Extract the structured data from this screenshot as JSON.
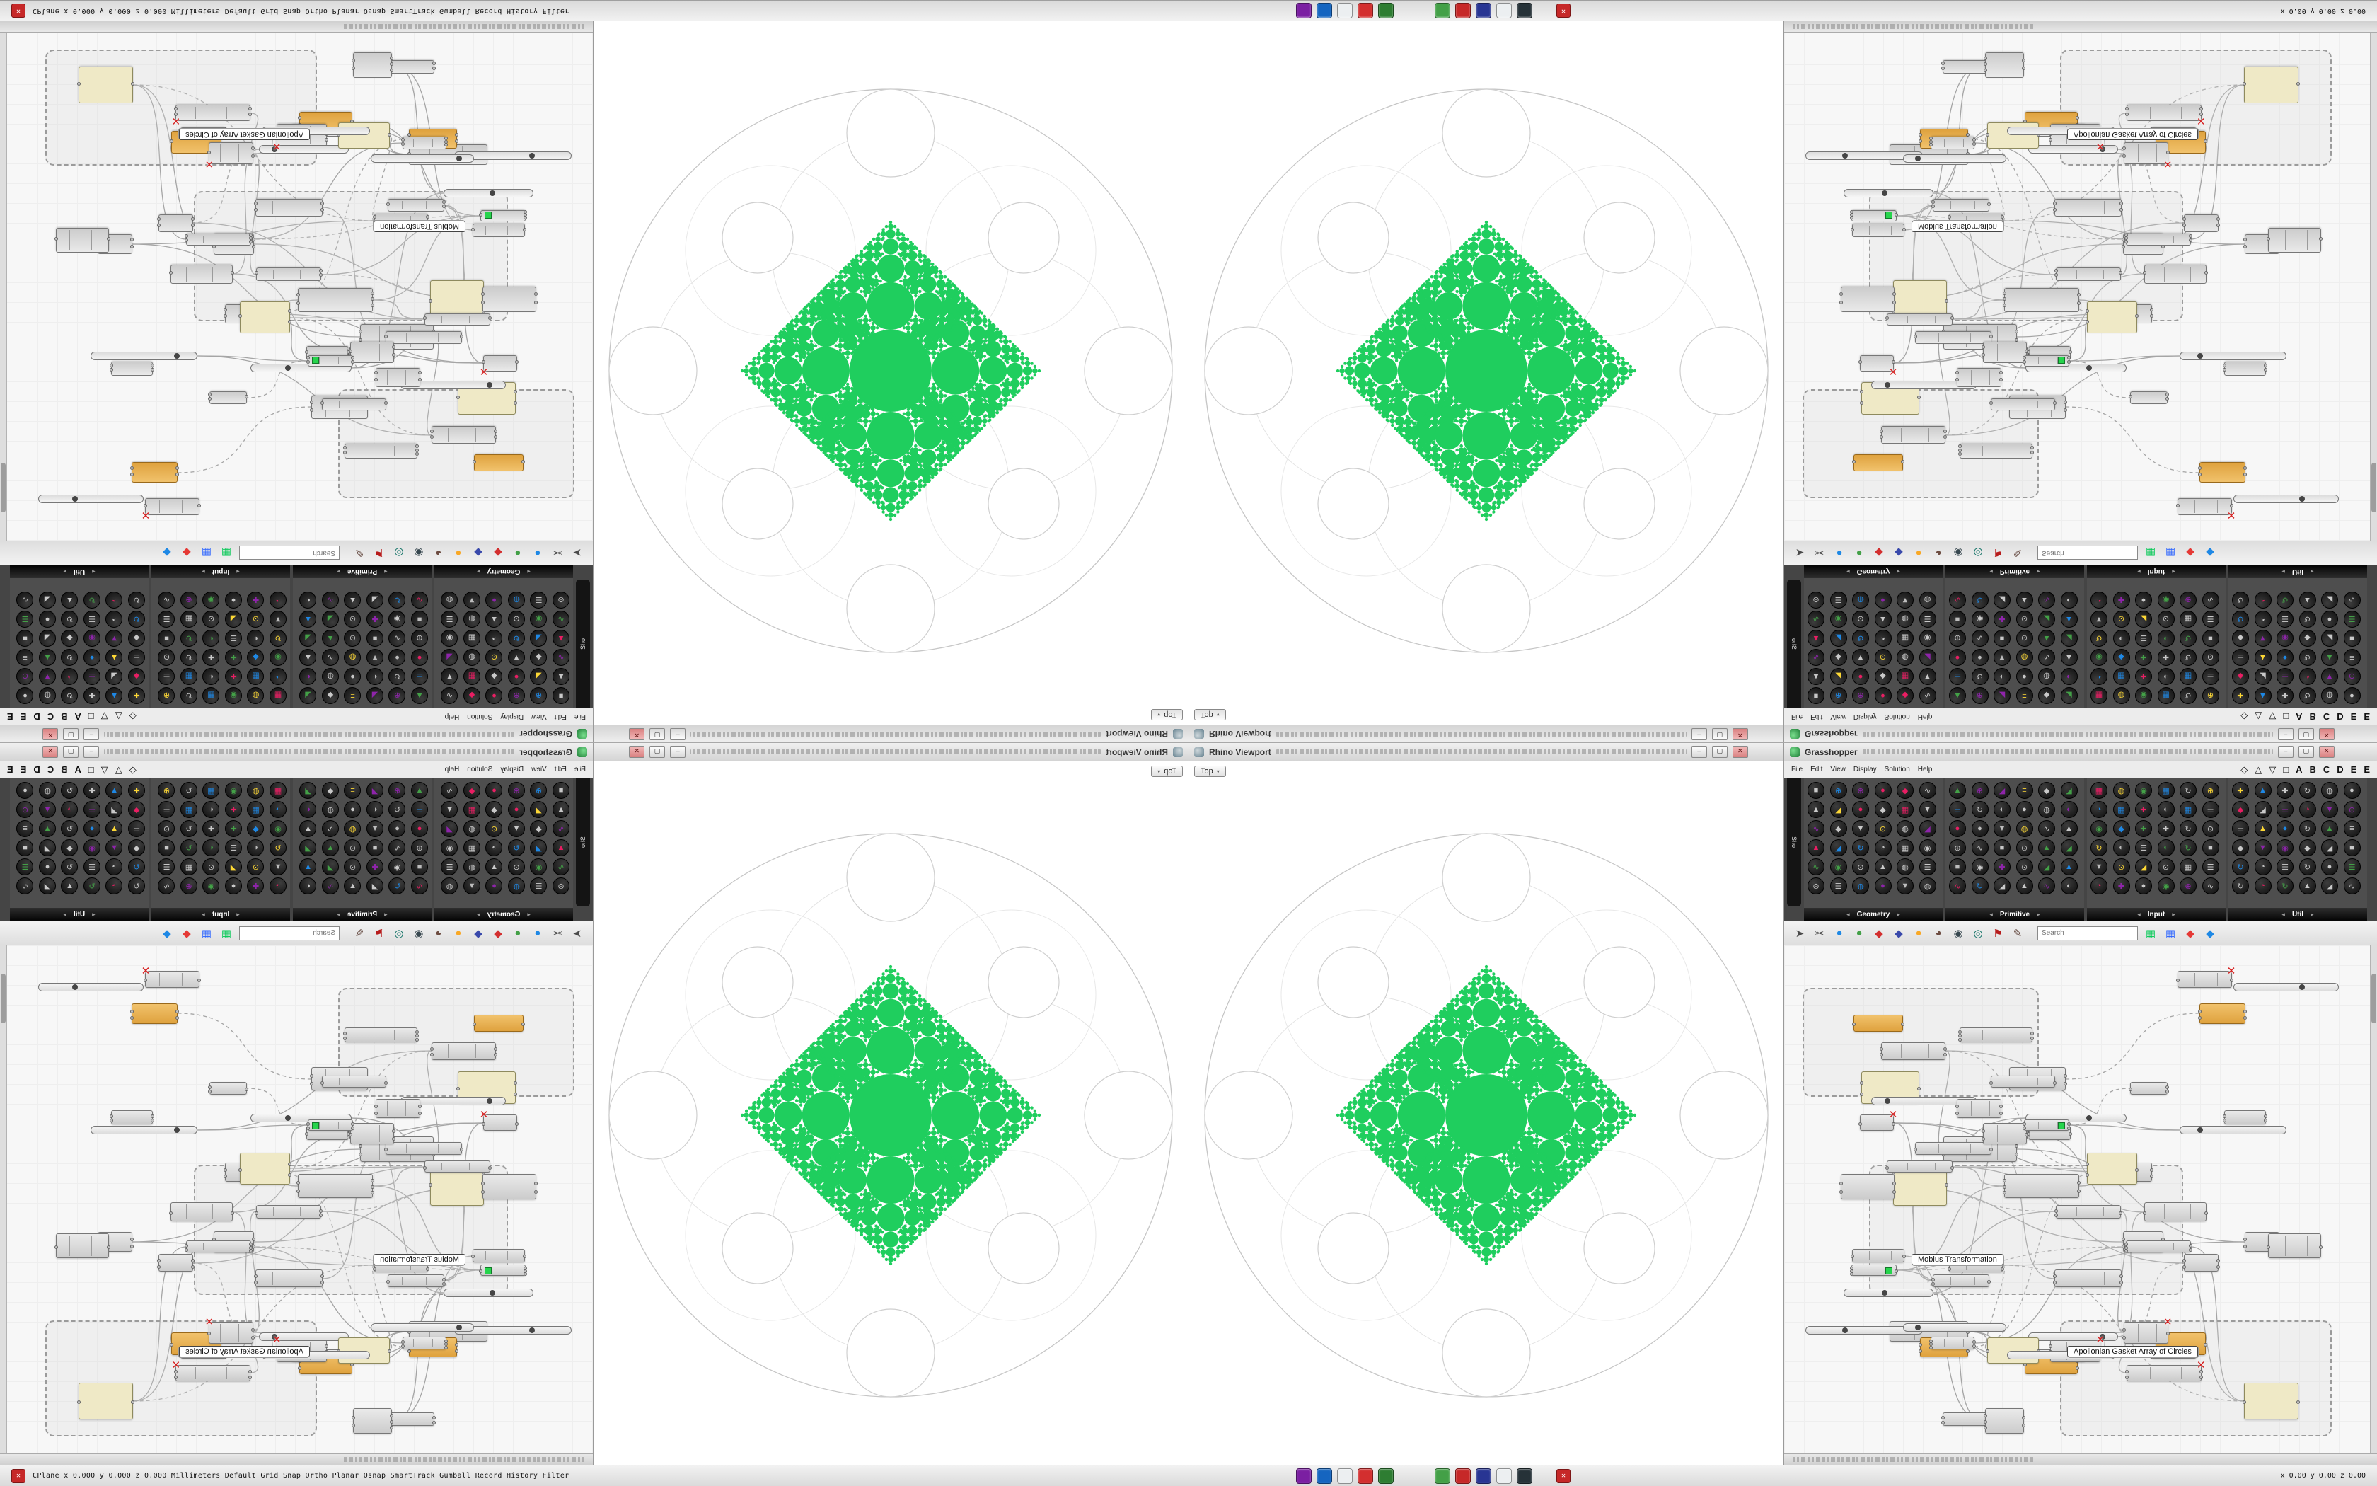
{
  "colors": {
    "green": "#1fce5e",
    "wire": "#a5a5a5",
    "canvas_bg": "#f7f7f7",
    "palette_bg": "#454545"
  },
  "taskbar": {
    "status_left": "CPlane  x 0.000  y 0.000  z 0.000   Millimeters   Default   Grid Snap  Ortho  Planar  Osnap  SmartTrack  Gumball  Record History  Filter",
    "coords_right": "x 0.00   y 0.00   z 0.00",
    "close_glyph": "✕",
    "app_icons_a": [
      {
        "name": "app-purple",
        "color": "#7b1fa2"
      },
      {
        "name": "app-blue",
        "color": "#1565c0"
      },
      {
        "name": "app-white",
        "color": "#eceff1"
      },
      {
        "name": "app-red",
        "color": "#d32f2f"
      },
      {
        "name": "app-green",
        "color": "#2e7d32"
      }
    ],
    "app_icons_b": [
      {
        "name": "app-green-2",
        "color": "#43a047"
      },
      {
        "name": "app-crimson",
        "color": "#c62828"
      },
      {
        "name": "app-navy",
        "color": "#283593"
      },
      {
        "name": "app-light",
        "color": "#eceff1"
      },
      {
        "name": "app-dark",
        "color": "#263238"
      }
    ]
  },
  "viewport": {
    "title": "Rhino Viewport",
    "tab": "Top",
    "tab_caret": "▾",
    "buttons": {
      "min": "–",
      "max": "▢",
      "close": "✕"
    }
  },
  "gh": {
    "title": "Grasshopper",
    "menu": [
      "File",
      "Edit",
      "View",
      "Display",
      "Solution",
      "Help"
    ],
    "tab_glyphs": [
      "◇",
      "△",
      "▽",
      "□",
      "A",
      "B",
      "C",
      "D",
      "E",
      "E"
    ],
    "show_tab": "Sho",
    "palette_groups": [
      {
        "label": "Geometry"
      },
      {
        "label": "Primitive"
      },
      {
        "label": "Input"
      },
      {
        "label": "Util"
      }
    ],
    "palette_arrow_left": "◂",
    "palette_arrow_right": "▸",
    "palette_glyph_pool": [
      "●",
      "◐",
      "▲",
      "■",
      "◆",
      "✚",
      "◢",
      "☰",
      "↻",
      "⊕",
      "≡",
      "∿",
      "▦",
      "◍",
      "◔",
      "▼",
      "◉",
      "⊙"
    ],
    "palette_color_pool": [
      "#c9c9c9",
      "#c9c9c9",
      "#c9c9c9",
      "#c9c9c9",
      "#bdbdbd",
      "#e91e63",
      "#8e24aa",
      "#43a047",
      "#1e88e5",
      "#fdd835"
    ],
    "search_placeholder": "Search",
    "canvas_groups": [
      "Mobius Transformation",
      "Apollonian Gasket Array of Circles"
    ],
    "toolbar_icons": [
      {
        "name": "pointer-icon",
        "glyph": "➤",
        "color": "#4a4a4a"
      },
      {
        "name": "scissors-icon",
        "glyph": "✂",
        "color": "#444444"
      },
      {
        "name": "sphere-blue-icon",
        "glyph": "●",
        "color": "#1e88e5"
      },
      {
        "name": "sphere-green-icon",
        "glyph": "●",
        "color": "#43a047"
      },
      {
        "name": "diamond-red-icon",
        "glyph": "◆",
        "color": "#d32f2f"
      },
      {
        "name": "diamond-blue-icon",
        "glyph": "◆",
        "color": "#3949ab"
      },
      {
        "name": "dot-yellow-icon",
        "glyph": "●",
        "color": "#f9a825"
      },
      {
        "name": "pie-brown-icon",
        "glyph": "◕",
        "color": "#6d4c41"
      },
      {
        "name": "eye-icon",
        "glyph": "◉",
        "color": "#37474f"
      },
      {
        "name": "target-icon",
        "glyph": "◎",
        "color": "#00695c"
      },
      {
        "name": "flag-icon",
        "glyph": "⚑",
        "color": "#b71c1c"
      },
      {
        "name": "pen-icon",
        "glyph": "✎",
        "color": "#5d4037"
      }
    ],
    "toolbar_icons_right": [
      {
        "name": "grid-green-icon",
        "glyph": "▦",
        "color": "#00c853"
      },
      {
        "name": "grid-blue-icon",
        "glyph": "▦",
        "color": "#2962ff"
      },
      {
        "name": "diamond-red2-icon",
        "glyph": "◆",
        "color": "#e53935"
      },
      {
        "name": "diamond-blue2-icon",
        "glyph": "◆",
        "color": "#1e88e5"
      }
    ],
    "buttons": {
      "min": "–",
      "max": "▢",
      "close": "✕"
    }
  }
}
